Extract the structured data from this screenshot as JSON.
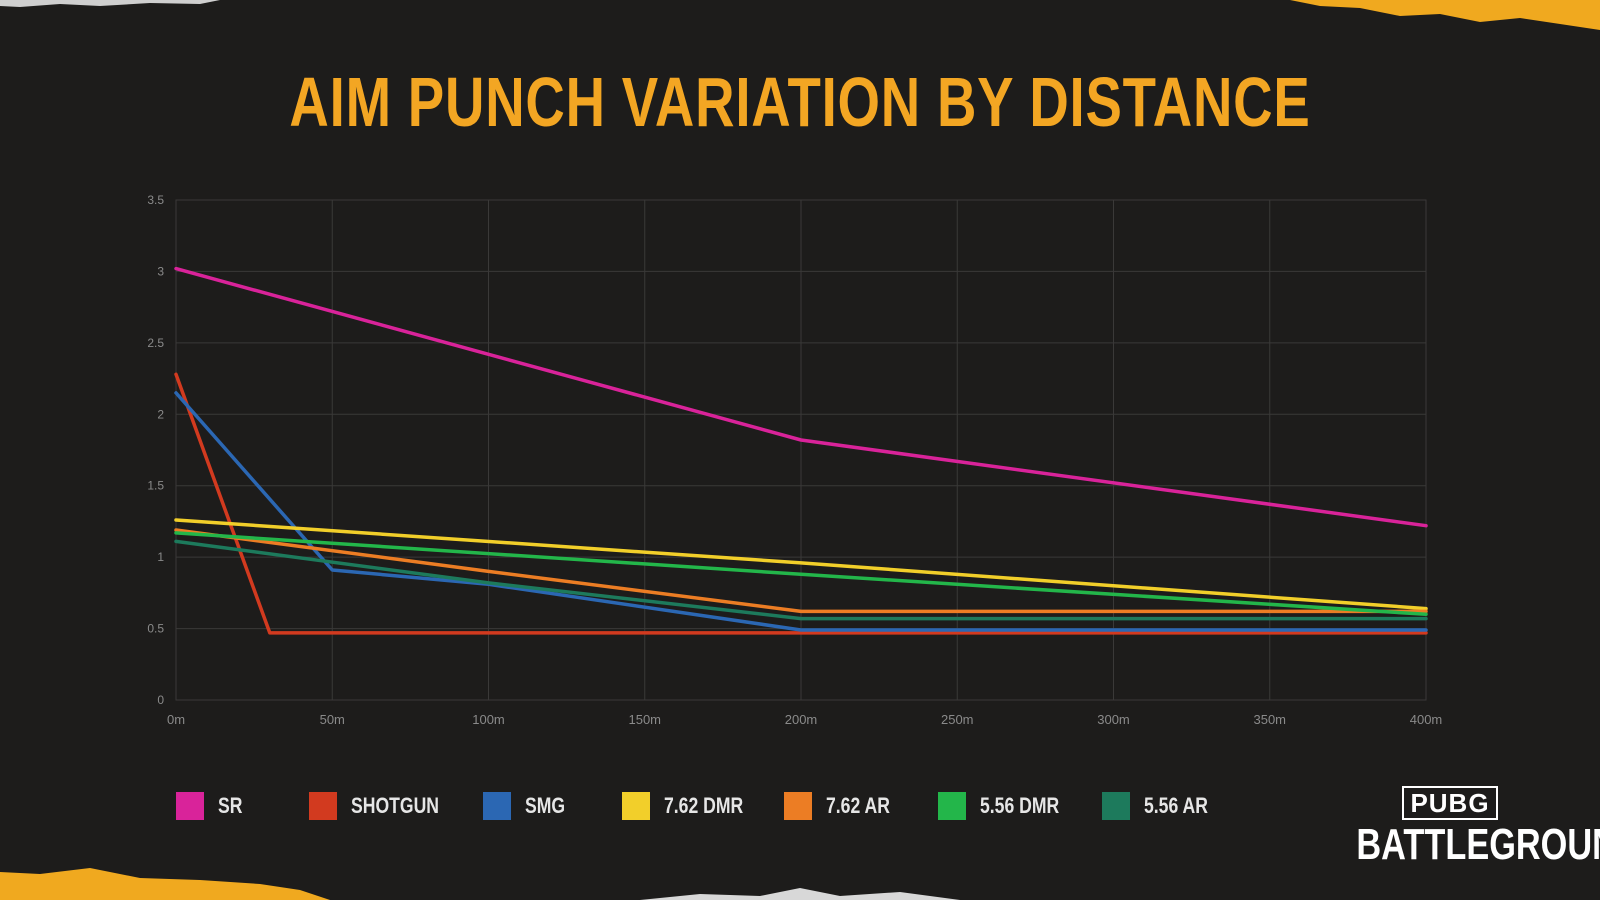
{
  "page": {
    "title": "AIM PUNCH VARIATION BY DISTANCE"
  },
  "logo": {
    "top": "PUBG",
    "bottom": "BATTLEGROUNDS"
  },
  "colors": {
    "title": "#f3a623",
    "background": "#1d1c1b",
    "grid": "#3a3938",
    "tick": "#8a8a8a",
    "accent_torn_edge": "#f0a91f"
  },
  "chart_data": {
    "type": "line",
    "title": "AIM PUNCH VARIATION BY DISTANCE",
    "xlabel": "",
    "ylabel": "",
    "x_ticks": [
      "0m",
      "50m",
      "100m",
      "150m",
      "200m",
      "250m",
      "300m",
      "350m",
      "400m"
    ],
    "y_ticks": [
      "0",
      "0.5",
      "1",
      "1.5",
      "2",
      "2.5",
      "3",
      "3.5"
    ],
    "xlim": [
      0,
      400
    ],
    "ylim": [
      0,
      3.5
    ],
    "grid": true,
    "legend": "bottom",
    "series": [
      {
        "name": "SR",
        "color": "#d9239a",
        "points": [
          [
            0,
            3.02
          ],
          [
            200,
            1.82
          ],
          [
            400,
            1.22
          ]
        ]
      },
      {
        "name": "SHOTGUN",
        "color": "#d23a1f",
        "points": [
          [
            0,
            2.28
          ],
          [
            30,
            0.47
          ],
          [
            400,
            0.47
          ]
        ]
      },
      {
        "name": "SMG",
        "color": "#2b67b3",
        "points": [
          [
            0,
            2.15
          ],
          [
            50,
            0.91
          ],
          [
            100,
            0.81
          ],
          [
            200,
            0.49
          ],
          [
            400,
            0.49
          ]
        ]
      },
      {
        "name": "7.62 DMR",
        "color": "#f2cf2a",
        "points": [
          [
            0,
            1.26
          ],
          [
            200,
            0.96
          ],
          [
            400,
            0.64
          ]
        ]
      },
      {
        "name": "7.62 AR",
        "color": "#ec7d24",
        "points": [
          [
            0,
            1.19
          ],
          [
            100,
            0.9
          ],
          [
            200,
            0.62
          ],
          [
            400,
            0.62
          ]
        ]
      },
      {
        "name": "5.56 DMR",
        "color": "#23b64a",
        "points": [
          [
            0,
            1.17
          ],
          [
            200,
            0.88
          ],
          [
            400,
            0.6
          ]
        ]
      },
      {
        "name": "5.56 AR",
        "color": "#1d7a5c",
        "points": [
          [
            0,
            1.11
          ],
          [
            100,
            0.82
          ],
          [
            200,
            0.57
          ],
          [
            400,
            0.57
          ]
        ]
      }
    ]
  }
}
